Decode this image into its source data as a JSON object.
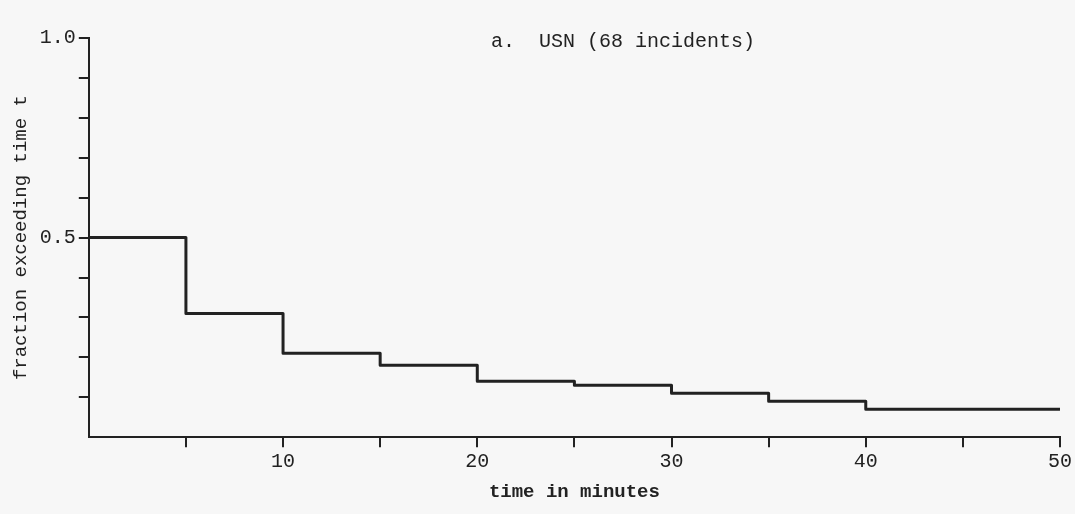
{
  "chart_data": {
    "type": "step",
    "title": "a.  USN (68 incidents)",
    "xlabel": "time in minutes",
    "ylabel": "fraction exceeding time t",
    "x": [
      0,
      5,
      10,
      15,
      20,
      25,
      30,
      35,
      40,
      50
    ],
    "series": [
      {
        "color": "#222222",
        "values": [
          0.5,
          0.31,
          0.21,
          0.18,
          0.14,
          0.13,
          0.11,
          0.09,
          0.07,
          0.07
        ]
      }
    ],
    "xlim": [
      0,
      50
    ],
    "ylim": [
      0,
      1.0
    ],
    "xticks": [
      {
        "value": 5,
        "label": null
      },
      10,
      {
        "value": 15,
        "label": null
      },
      20,
      {
        "value": 25,
        "label": null
      },
      30,
      {
        "value": 35,
        "label": null
      },
      40,
      {
        "value": 45,
        "label": null
      },
      50
    ],
    "yticks": [
      {
        "value": 0.1,
        "label": null
      },
      {
        "value": 0.2,
        "label": null
      },
      {
        "value": 0.3,
        "label": null
      },
      {
        "value": 0.4,
        "label": null
      },
      {
        "value": 0.5,
        "label": "0.5"
      },
      {
        "value": 0.6,
        "label": null
      },
      {
        "value": 0.7,
        "label": null
      },
      {
        "value": 0.8,
        "label": null
      },
      {
        "value": 0.9,
        "label": null
      },
      {
        "value": 1.0,
        "label": "1.0"
      }
    ]
  }
}
